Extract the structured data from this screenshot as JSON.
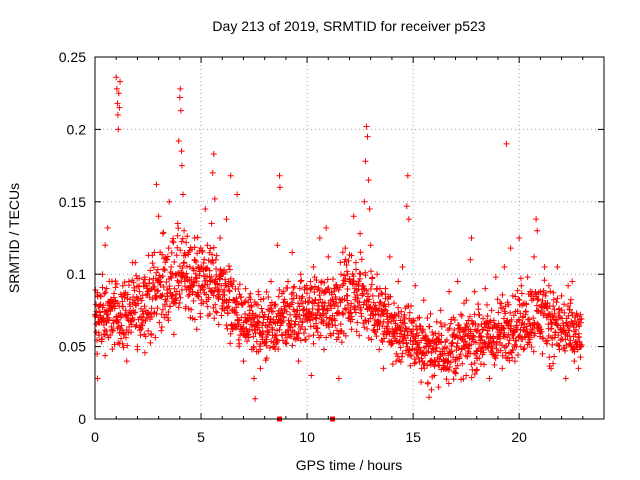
{
  "chart_data": {
    "type": "scatter",
    "title": "Day 213 of 2019, SRMTID for receiver p523",
    "xlabel": "GPS time / hours",
    "ylabel": "SRMTID / TECUs",
    "xlim": [
      0,
      24
    ],
    "ylim": [
      0,
      0.25
    ],
    "xticks": [
      0,
      5,
      10,
      15,
      20
    ],
    "xtick_labels": [
      "0",
      "5",
      "10",
      "15",
      "20"
    ],
    "yticks": [
      0,
      0.05,
      0.1,
      0.15,
      0.2,
      0.25
    ],
    "ytick_labels": [
      "0",
      "0.05",
      "0.1",
      "0.15",
      "0.2",
      "0.25"
    ],
    "grid": true,
    "marker": "+",
    "color": "#ff0000",
    "series": [
      {
        "name": "SRMTID",
        "points": [
          [
            0.05,
            0.06
          ],
          [
            0.1,
            0.045
          ],
          [
            0.12,
            0.028
          ],
          [
            0.18,
            0.07
          ],
          [
            0.25,
            0.085
          ],
          [
            0.3,
            0.055
          ],
          [
            0.35,
            0.1
          ],
          [
            0.42,
            0.065
          ],
          [
            0.48,
            0.12
          ],
          [
            0.55,
            0.09
          ],
          [
            0.6,
            0.132
          ],
          [
            0.65,
            0.075
          ],
          [
            0.72,
            0.058
          ],
          [
            0.8,
            0.095
          ],
          [
            0.85,
            0.068
          ],
          [
            0.95,
            0.082
          ],
          [
            1.0,
            0.236
          ],
          [
            1.03,
            0.228
          ],
          [
            1.06,
            0.218
          ],
          [
            1.08,
            0.21
          ],
          [
            1.1,
            0.2
          ],
          [
            1.12,
            0.225
          ],
          [
            1.15,
            0.215
          ],
          [
            1.18,
            0.233
          ],
          [
            1.22,
            0.07
          ],
          [
            1.3,
            0.052
          ],
          [
            1.4,
            0.085
          ],
          [
            1.5,
            0.04
          ],
          [
            1.6,
            0.095
          ],
          [
            1.7,
            0.06
          ],
          [
            1.8,
            0.075
          ],
          [
            1.9,
            0.108
          ],
          [
            2.0,
            0.05
          ],
          [
            2.1,
            0.088
          ],
          [
            2.2,
            0.065
          ],
          [
            2.35,
            0.098
          ],
          [
            2.5,
            0.072
          ],
          [
            2.65,
            0.058
          ],
          [
            2.8,
            0.115
          ],
          [
            2.9,
            0.162
          ],
          [
            3.0,
            0.14
          ],
          [
            3.1,
            0.095
          ],
          [
            3.2,
            0.128
          ],
          [
            3.3,
            0.078
          ],
          [
            3.4,
            0.11
          ],
          [
            3.5,
            0.15
          ],
          [
            3.6,
            0.085
          ],
          [
            3.7,
            0.122
          ],
          [
            3.8,
            0.1
          ],
          [
            3.9,
            0.135
          ],
          [
            3.95,
            0.192
          ],
          [
            4.0,
            0.222
          ],
          [
            4.02,
            0.228
          ],
          [
            4.05,
            0.213
          ],
          [
            4.08,
            0.185
          ],
          [
            4.1,
            0.175
          ],
          [
            4.15,
            0.155
          ],
          [
            4.2,
            0.13
          ],
          [
            4.3,
            0.098
          ],
          [
            4.4,
            0.115
          ],
          [
            4.5,
            0.07
          ],
          [
            4.6,
            0.088
          ],
          [
            4.7,
            0.125
          ],
          [
            4.8,
            0.062
          ],
          [
            4.9,
            0.092
          ],
          [
            5.0,
            0.105
          ],
          [
            5.1,
            0.08
          ],
          [
            5.2,
            0.145
          ],
          [
            5.3,
            0.12
          ],
          [
            5.4,
            0.098
          ],
          [
            5.5,
            0.135
          ],
          [
            5.55,
            0.17
          ],
          [
            5.6,
            0.183
          ],
          [
            5.65,
            0.152
          ],
          [
            5.7,
            0.11
          ],
          [
            5.8,
            0.088
          ],
          [
            5.9,
            0.125
          ],
          [
            6.0,
            0.1
          ],
          [
            6.1,
            0.075
          ],
          [
            6.2,
            0.138
          ],
          [
            6.3,
            0.095
          ],
          [
            6.4,
            0.168
          ],
          [
            6.5,
            0.062
          ],
          [
            6.6,
            0.082
          ],
          [
            6.7,
            0.155
          ],
          [
            6.8,
            0.052
          ],
          [
            6.9,
            0.07
          ],
          [
            7.0,
            0.04
          ],
          [
            7.1,
            0.09
          ],
          [
            7.2,
            0.058
          ],
          [
            7.3,
            0.075
          ],
          [
            7.4,
            0.048
          ],
          [
            7.5,
            0.028
          ],
          [
            7.55,
            0.014
          ],
          [
            7.6,
            0.065
          ],
          [
            7.7,
            0.088
          ],
          [
            7.8,
            0.035
          ],
          [
            7.9,
            0.055
          ],
          [
            8.0,
            0.072
          ],
          [
            8.1,
            0.042
          ],
          [
            8.2,
            0.06
          ],
          [
            8.3,
            0.095
          ],
          [
            8.4,
            0.05
          ],
          [
            8.5,
            0.078
          ],
          [
            8.6,
            0.12
          ],
          [
            8.7,
            0.168
          ],
          [
            8.72,
            0.16
          ],
          [
            8.8,
            0.068
          ],
          [
            8.9,
            0.088
          ],
          [
            9.0,
            0.052
          ],
          [
            9.1,
            0.095
          ],
          [
            9.2,
            0.072
          ],
          [
            9.3,
            0.115
          ],
          [
            9.4,
            0.06
          ],
          [
            9.5,
            0.085
          ],
          [
            9.6,
            0.04
          ],
          [
            9.7,
            0.1
          ],
          [
            9.8,
            0.075
          ],
          [
            9.9,
            0.055
          ],
          [
            10.0,
            0.09
          ],
          [
            10.1,
            0.07
          ],
          [
            10.2,
            0.03
          ],
          [
            10.3,
            0.105
          ],
          [
            10.4,
            0.082
          ],
          [
            10.5,
            0.06
          ],
          [
            10.6,
            0.125
          ],
          [
            10.7,
            0.095
          ],
          [
            10.8,
            0.048
          ],
          [
            10.9,
            0.132
          ],
          [
            11.0,
            0.112
          ],
          [
            11.1,
            0.078
          ],
          [
            11.2,
            0.065
          ],
          [
            11.3,
            0.09
          ],
          [
            11.4,
            0.055
          ],
          [
            11.5,
            0.028
          ],
          [
            11.6,
            0.1
          ],
          [
            11.7,
            0.072
          ],
          [
            11.8,
            0.118
          ],
          [
            11.9,
            0.085
          ],
          [
            12.0,
            0.095
          ],
          [
            12.1,
            0.062
          ],
          [
            12.2,
            0.14
          ],
          [
            12.3,
            0.108
          ],
          [
            12.4,
            0.078
          ],
          [
            12.5,
            0.128
          ],
          [
            12.6,
            0.092
          ],
          [
            12.7,
            0.15
          ],
          [
            12.75,
            0.178
          ],
          [
            12.8,
            0.202
          ],
          [
            12.85,
            0.195
          ],
          [
            12.9,
            0.165
          ],
          [
            12.95,
            0.145
          ],
          [
            13.0,
            0.12
          ],
          [
            13.1,
            0.085
          ],
          [
            13.2,
            0.065
          ],
          [
            13.3,
            0.1
          ],
          [
            13.4,
            0.048
          ],
          [
            13.5,
            0.075
          ],
          [
            13.6,
            0.035
          ],
          [
            13.7,
            0.09
          ],
          [
            13.8,
            0.06
          ],
          [
            13.9,
            0.112
          ],
          [
            14.0,
            0.052
          ],
          [
            14.1,
            0.08
          ],
          [
            14.2,
            0.04
          ],
          [
            14.3,
            0.095
          ],
          [
            14.4,
            0.068
          ],
          [
            14.5,
            0.105
          ],
          [
            14.6,
            0.058
          ],
          [
            14.7,
            0.147
          ],
          [
            14.75,
            0.168
          ],
          [
            14.8,
            0.138
          ],
          [
            14.9,
            0.078
          ],
          [
            15.0,
            0.062
          ],
          [
            15.1,
            0.092
          ],
          [
            15.2,
            0.045
          ],
          [
            15.3,
            0.07
          ],
          [
            15.4,
            0.035
          ],
          [
            15.5,
            0.082
          ],
          [
            15.6,
            0.05
          ],
          [
            15.7,
            0.025
          ],
          [
            15.75,
            0.015
          ],
          [
            15.8,
            0.04
          ],
          [
            15.9,
            0.06
          ],
          [
            16.0,
            0.03
          ],
          [
            16.1,
            0.055
          ],
          [
            16.2,
            0.022
          ],
          [
            16.3,
            0.075
          ],
          [
            16.4,
            0.045
          ],
          [
            16.5,
            0.065
          ],
          [
            16.6,
            0.035
          ],
          [
            16.7,
            0.088
          ],
          [
            16.8,
            0.052
          ],
          [
            16.9,
            0.07
          ],
          [
            17.0,
            0.04
          ],
          [
            17.1,
            0.095
          ],
          [
            17.2,
            0.06
          ],
          [
            17.3,
            0.048
          ],
          [
            17.4,
            0.08
          ],
          [
            17.5,
            0.03
          ],
          [
            17.6,
            0.068
          ],
          [
            17.7,
            0.11
          ],
          [
            17.75,
            0.125
          ],
          [
            17.8,
            0.055
          ],
          [
            17.9,
            0.088
          ],
          [
            18.0,
            0.042
          ],
          [
            18.1,
            0.072
          ],
          [
            18.2,
            0.038
          ],
          [
            18.3,
            0.062
          ],
          [
            18.4,
            0.09
          ],
          [
            18.5,
            0.05
          ],
          [
            18.6,
            0.028
          ],
          [
            18.7,
            0.075
          ],
          [
            18.8,
            0.045
          ],
          [
            18.9,
            0.098
          ],
          [
            19.0,
            0.06
          ],
          [
            19.1,
            0.08
          ],
          [
            19.2,
            0.035
          ],
          [
            19.3,
            0.105
          ],
          [
            19.4,
            0.19
          ],
          [
            19.45,
            0.068
          ],
          [
            19.5,
            0.052
          ],
          [
            19.6,
            0.118
          ],
          [
            19.7,
            0.085
          ],
          [
            19.8,
            0.04
          ],
          [
            19.9,
            0.062
          ],
          [
            20.0,
            0.125
          ],
          [
            20.1,
            0.092
          ],
          [
            20.2,
            0.048
          ],
          [
            20.3,
            0.072
          ],
          [
            20.4,
            0.098
          ],
          [
            20.5,
            0.055
          ],
          [
            20.6,
            0.082
          ],
          [
            20.7,
            0.112
          ],
          [
            20.8,
            0.138
          ],
          [
            20.85,
            0.13
          ],
          [
            20.9,
            0.065
          ],
          [
            21.0,
            0.088
          ],
          [
            21.1,
            0.045
          ],
          [
            21.2,
            0.105
          ],
          [
            21.3,
            0.07
          ],
          [
            21.4,
            0.092
          ],
          [
            21.5,
            0.035
          ],
          [
            21.6,
            0.078
          ],
          [
            21.7,
            0.058
          ],
          [
            21.8,
            0.105
          ],
          [
            21.9,
            0.048
          ],
          [
            22.0,
            0.085
          ],
          [
            22.1,
            0.06
          ],
          [
            22.2,
            0.028
          ],
          [
            22.3,
            0.078
          ],
          [
            22.4,
            0.052
          ],
          [
            22.5,
            0.095
          ],
          [
            22.6,
            0.04
          ],
          [
            22.7,
            0.065
          ],
          [
            22.8,
            0.035
          ],
          [
            22.85,
            0.05
          ],
          [
            22.9,
            0.072
          ]
        ]
      }
    ],
    "density_note": "dense cloud of '+' markers; additional points follow the same envelope",
    "zero_markers": [
      8.7,
      11.2
    ],
    "envelope": [
      [
        0.0,
        0.045,
        0.095
      ],
      [
        1.0,
        0.05,
        0.095
      ],
      [
        2.0,
        0.05,
        0.1
      ],
      [
        3.0,
        0.06,
        0.12
      ],
      [
        4.0,
        0.065,
        0.13
      ],
      [
        5.0,
        0.07,
        0.125
      ],
      [
        6.0,
        0.065,
        0.115
      ],
      [
        7.0,
        0.045,
        0.085
      ],
      [
        8.0,
        0.04,
        0.08
      ],
      [
        9.0,
        0.05,
        0.09
      ],
      [
        10.0,
        0.055,
        0.095
      ],
      [
        11.0,
        0.055,
        0.1
      ],
      [
        12.0,
        0.06,
        0.115
      ],
      [
        13.0,
        0.055,
        0.105
      ],
      [
        14.0,
        0.04,
        0.085
      ],
      [
        15.0,
        0.035,
        0.075
      ],
      [
        16.0,
        0.028,
        0.065
      ],
      [
        17.0,
        0.03,
        0.07
      ],
      [
        18.0,
        0.035,
        0.075
      ],
      [
        19.0,
        0.035,
        0.08
      ],
      [
        20.0,
        0.045,
        0.09
      ],
      [
        21.0,
        0.05,
        0.095
      ],
      [
        22.0,
        0.04,
        0.085
      ],
      [
        23.0,
        0.035,
        0.075
      ]
    ]
  }
}
